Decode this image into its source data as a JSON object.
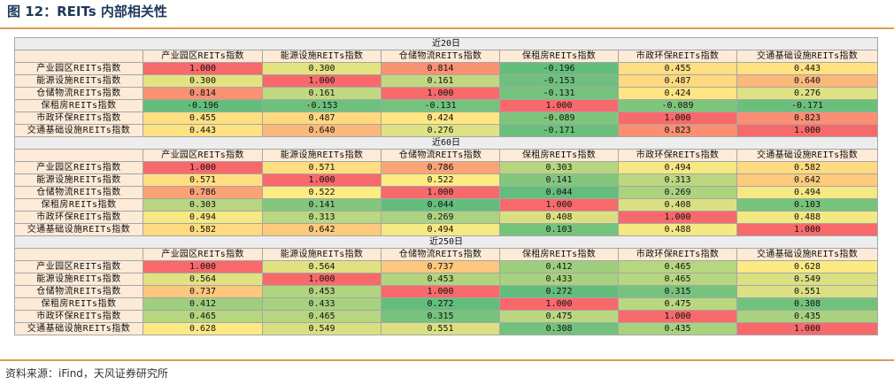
{
  "title": "图 12：REITs 内部相关性",
  "source": "资料来源：iFind，天风证券研究所",
  "row_labels": [
    "产业园区REITs指数",
    "能源设施REITs指数",
    "仓储物流REITs指数",
    "保租房REITs指数",
    "市政环保REITs指数",
    "交通基础设施REITs指数"
  ],
  "col_labels": [
    "产业园区REITs指数",
    "能源设施REITs指数",
    "仓储物流REITs指数",
    "保租房REITs指数",
    "市政环保REITs指数",
    "交通基础设施REITs指数"
  ],
  "blocks": [
    {
      "label": "近20日",
      "values": [
        [
          "1.000",
          "0.300",
          "0.814",
          "-0.196",
          "0.455",
          "0.443"
        ],
        [
          "0.300",
          "1.000",
          "0.161",
          "-0.153",
          "0.487",
          "0.640"
        ],
        [
          "0.814",
          "0.161",
          "1.000",
          "-0.131",
          "0.424",
          "0.276"
        ],
        [
          "-0.196",
          "-0.153",
          "-0.131",
          "1.000",
          "-0.089",
          "-0.171"
        ],
        [
          "0.455",
          "0.487",
          "0.424",
          "-0.089",
          "1.000",
          "0.823"
        ],
        [
          "0.443",
          "0.640",
          "0.276",
          "-0.171",
          "0.823",
          "1.000"
        ]
      ]
    },
    {
      "label": "近60日",
      "values": [
        [
          "1.000",
          "0.571",
          "0.786",
          "0.303",
          "0.494",
          "0.582"
        ],
        [
          "0.571",
          "1.000",
          "0.522",
          "0.141",
          "0.313",
          "0.642"
        ],
        [
          "0.786",
          "0.522",
          "1.000",
          "0.044",
          "0.269",
          "0.494"
        ],
        [
          "0.303",
          "0.141",
          "0.044",
          "1.000",
          "0.408",
          "0.103"
        ],
        [
          "0.494",
          "0.313",
          "0.269",
          "0.408",
          "1.000",
          "0.488"
        ],
        [
          "0.582",
          "0.642",
          "0.494",
          "0.103",
          "0.488",
          "1.000"
        ]
      ]
    },
    {
      "label": "近250日",
      "values": [
        [
          "1.000",
          "0.564",
          "0.737",
          "0.412",
          "0.465",
          "0.628"
        ],
        [
          "0.564",
          "1.000",
          "0.453",
          "0.433",
          "0.465",
          "0.549"
        ],
        [
          "0.737",
          "0.453",
          "1.000",
          "0.272",
          "0.315",
          "0.551"
        ],
        [
          "0.412",
          "0.433",
          "0.272",
          "1.000",
          "0.475",
          "0.308"
        ],
        [
          "0.465",
          "0.465",
          "0.315",
          "0.475",
          "1.000",
          "0.435"
        ],
        [
          "0.628",
          "0.549",
          "0.551",
          "0.308",
          "0.435",
          "1.000"
        ]
      ]
    }
  ],
  "colors": {
    "heat_high": "#f8696b",
    "heat_mid": "#ffeb84",
    "heat_low": "#63be7b",
    "header_fill": "#fdebd8",
    "section_fill": "#ededed",
    "rule": "#e3994f",
    "title_text": "#1f3a5a"
  }
}
